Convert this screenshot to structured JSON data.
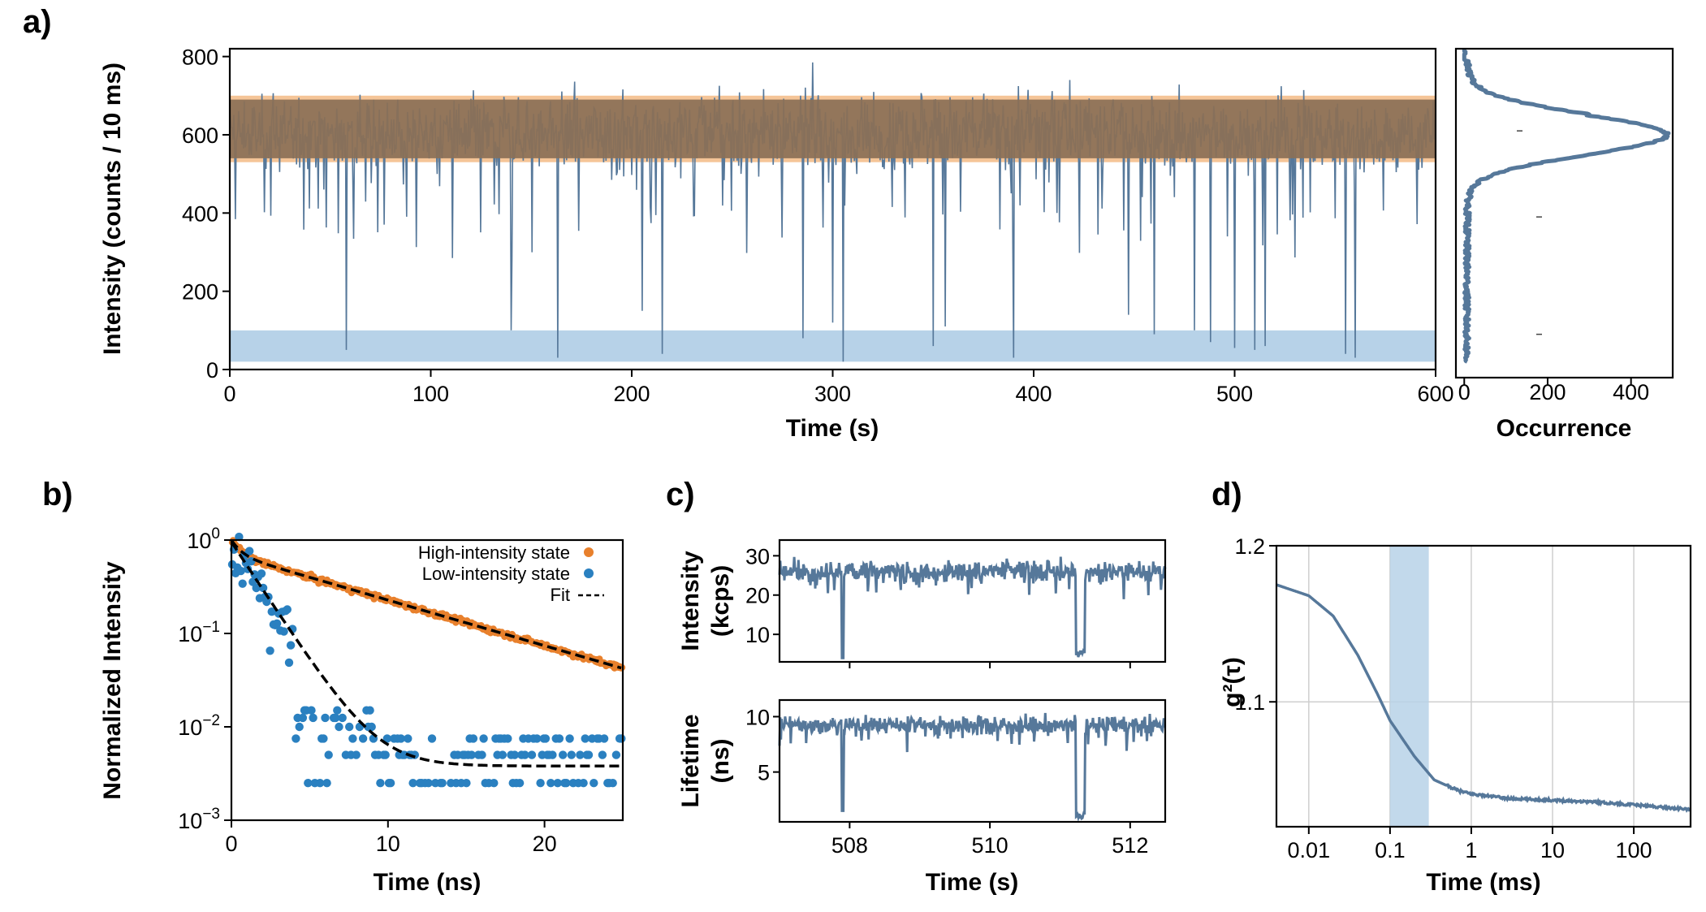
{
  "colors": {
    "trace": "#56789a",
    "high": "#e8802c",
    "low": "#2a80c0",
    "high_band": "#f5c598",
    "low_band": "#b7d2e8",
    "overlap": "#8b7056",
    "fit": "#000000",
    "grid": "#cfcfcf"
  },
  "chart_data": [
    {
      "panel": "a)",
      "type": "line",
      "title": "",
      "xlabel": "Time (s)",
      "ylabel": "Intensity (counts / 10 ms)",
      "xlim": [
        0,
        600
      ],
      "ylim": [
        0,
        820
      ],
      "xticks": [
        0,
        100,
        200,
        300,
        400,
        500,
        600
      ],
      "yticks": [
        0,
        200,
        400,
        600,
        800
      ],
      "bands": [
        {
          "name": "high-intensity state",
          "y_from": 530,
          "y_to": 700
        },
        {
          "name": "low-intensity state",
          "y_from": 20,
          "y_to": 100
        }
      ],
      "series": [
        {
          "name": "intensity trace",
          "baseline_mean": 600,
          "baseline_spread": 80,
          "min": 20,
          "max": 820,
          "dip_times": [
            58,
            140,
            163,
            205,
            215,
            285,
            300,
            305,
            350,
            356,
            390,
            447,
            460,
            480,
            488,
            500,
            510,
            515,
            555,
            560
          ],
          "dip_values": [
            50,
            100,
            30,
            150,
            40,
            80,
            120,
            20,
            60,
            110,
            30,
            140,
            90,
            100,
            70,
            55,
            50,
            60,
            40,
            30
          ]
        }
      ]
    },
    {
      "panel": "a) histogram",
      "type": "bar",
      "orientation": "horizontal",
      "xlabel": "Occurrence",
      "ylabel": "",
      "xlim": [
        -20,
        500
      ],
      "xticks": [
        0,
        200,
        400
      ],
      "peak_intensity": 600,
      "peak_occurrence": 480,
      "width": 50
    },
    {
      "panel": "b)",
      "type": "scatter",
      "xlabel": "Time (ns)",
      "ylabel": "Normalized Intensity",
      "xlim": [
        0,
        25
      ],
      "ylim_log10": [
        -3,
        0
      ],
      "xticks": [
        0,
        10,
        20
      ],
      "ytick_labels": [
        {
          "base": "10",
          "exp": "0"
        },
        {
          "base": "10",
          "exp": "−1"
        },
        {
          "base": "10",
          "exp": "−2"
        },
        {
          "base": "10",
          "exp": "−3"
        }
      ],
      "series": [
        {
          "name": "High-intensity state",
          "tau_ns": 8.9,
          "amplitude": 0.7,
          "fast_amplitude": 0.3,
          "fast_tau_ns": 0.6
        },
        {
          "name": "Low-intensity state",
          "tau_ns": 1.7,
          "floor": 0.0038
        },
        {
          "name": "Fit",
          "style": "dashed"
        }
      ]
    },
    {
      "panel": "c)",
      "type": "line",
      "xlabel": "Time (s)",
      "xlim": [
        507,
        512.5
      ],
      "xticks": [
        508,
        510,
        512
      ],
      "subplots": [
        {
          "ylabel": [
            "Intensity",
            "(kcps)"
          ],
          "ylim": [
            3,
            34
          ],
          "yticks": [
            10,
            20,
            30
          ],
          "baseline": 26,
          "spread": 2.2,
          "dips": [
            {
              "t": 507.9,
              "v": 4
            },
            {
              "t": 511.3,
              "v": 4
            }
          ]
        },
        {
          "ylabel": [
            "Lifetime",
            "(ns)"
          ],
          "ylim": [
            0.5,
            11.5
          ],
          "yticks": [
            5,
            10
          ],
          "baseline": 9.2,
          "spread": 0.7,
          "dips": [
            {
              "t": 507.9,
              "v": 1.5
            },
            {
              "t": 511.3,
              "v": 0.6
            }
          ]
        }
      ]
    },
    {
      "panel": "d)",
      "type": "line",
      "xlabel": "Time (ms)",
      "ylabel": "g²(τ)",
      "xscale": "log",
      "xlim_ms": [
        0.004,
        500
      ],
      "ylim": [
        1.02,
        1.2
      ],
      "xtick_labels": [
        "0.01",
        "0.1",
        "1",
        "10",
        "100"
      ],
      "ytick_labels": [
        "1.1",
        "1.2"
      ],
      "highlight_ms": [
        0.1,
        0.3
      ],
      "series": [
        {
          "name": "g2",
          "points": [
            [
              0.004,
              1.175
            ],
            [
              0.01,
              1.168
            ],
            [
              0.02,
              1.155
            ],
            [
              0.04,
              1.13
            ],
            [
              0.07,
              1.105
            ],
            [
              0.1,
              1.088
            ],
            [
              0.2,
              1.065
            ],
            [
              0.35,
              1.05
            ],
            [
              0.7,
              1.043
            ],
            [
              1,
              1.041
            ],
            [
              3,
              1.038
            ],
            [
              10,
              1.037
            ],
            [
              30,
              1.036
            ],
            [
              100,
              1.034
            ],
            [
              500,
              1.031
            ]
          ]
        }
      ]
    }
  ]
}
